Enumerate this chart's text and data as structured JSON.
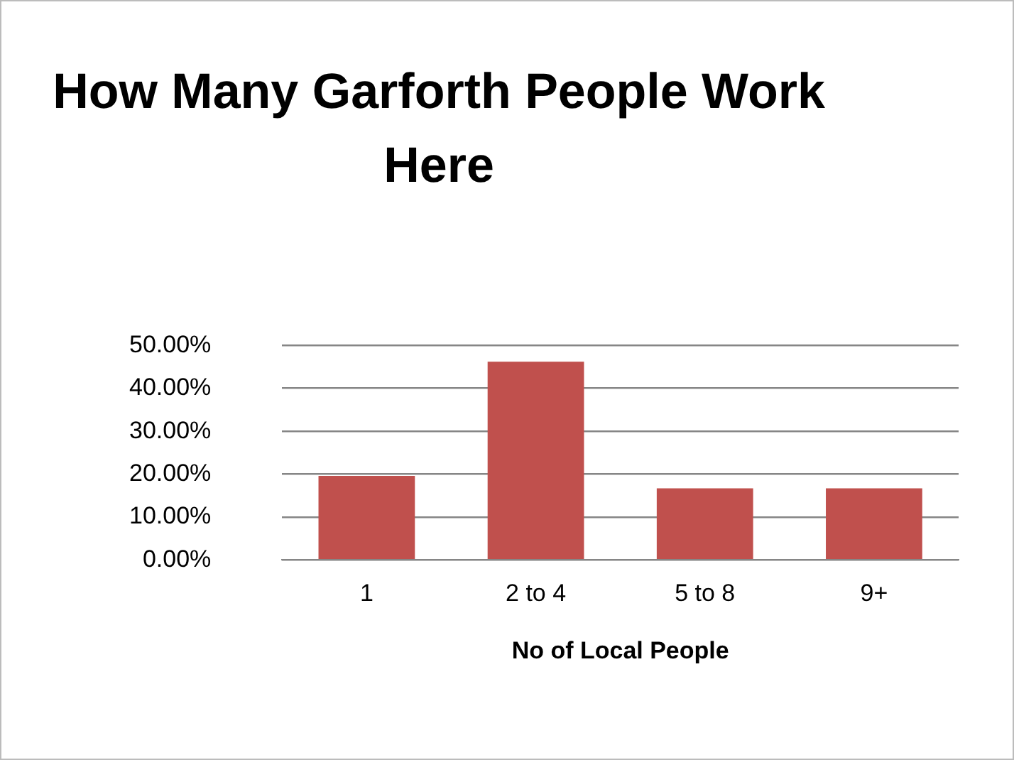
{
  "chart_data": {
    "type": "bar",
    "title": "How Many Garforth People Work Here",
    "xlabel": "No of Local People",
    "categories": [
      "1",
      "2 to 4",
      "5 to 8",
      "9+"
    ],
    "values": [
      19.6,
      46.2,
      16.7,
      16.7
    ],
    "color": "#c0504d",
    "ylim": [
      0,
      50
    ],
    "yticks": [
      {
        "value": 0,
        "label": "0.00%"
      },
      {
        "value": 10,
        "label": "10.00%"
      },
      {
        "value": 20,
        "label": "20.00%"
      },
      {
        "value": 30,
        "label": "30.00%"
      },
      {
        "value": 40,
        "label": "40.00%"
      },
      {
        "value": 50,
        "label": "50.00%"
      }
    ],
    "grid": "y",
    "legend": false
  }
}
